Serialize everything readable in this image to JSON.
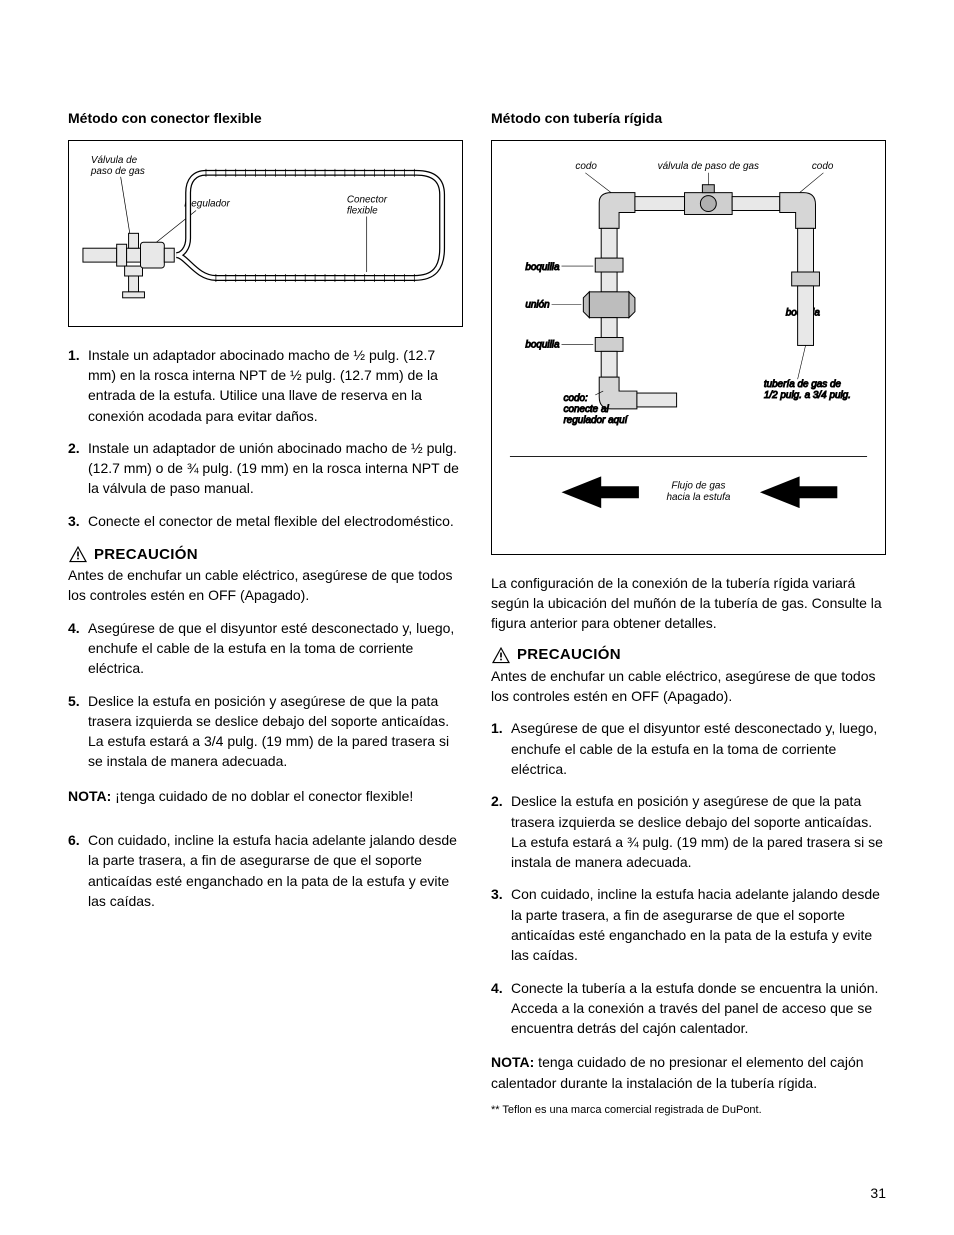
{
  "page_number": "31",
  "left": {
    "title": "Método con conector flexible",
    "diagram": {
      "labels": {
        "valve": "Válvula de\npaso de gas",
        "regulator": "Regulador",
        "connector": "Conector\nflexible"
      },
      "colors": {
        "stroke": "#000000",
        "fill_light": "#f2f2f2",
        "fill_mid": "#cccccc"
      }
    },
    "steps_a": [
      {
        "n": "1.",
        "t": "Instale un adaptador abocinado macho de ½ pulg. (12.7 mm) en la rosca interna NPT de ½ pulg. (12.7 mm) de la entrada de la estufa. Utilice una llave de reserva en la conexión acodada para evitar daños."
      },
      {
        "n": "2.",
        "t": "Instale un adaptador de unión abocinado macho de ½ pulg. (12.7 mm) o de ¾ pulg. (19 mm) en la rosca interna NPT de la válvula de paso manual."
      },
      {
        "n": "3.",
        "t": "Conecte el conector de metal flexible del electrodoméstico."
      }
    ],
    "caution_label": "PRECAUCIÓN",
    "caution_text": "Antes de enchufar un cable eléctrico, asegúrese de que todos los controles estén en OFF (Apagado).",
    "steps_b": [
      {
        "n": "4.",
        "t": "Asegúrese de que el disyuntor esté desconectado y, luego, enchufe el cable de la estufa en la toma de corriente eléctrica."
      },
      {
        "n": "5.",
        "t": "Deslice la estufa en posición y asegúrese de que la pata trasera izquierda se deslice debajo del soporte anticaídas. La estufa estará a 3/4 pulg. (19 mm) de la pared trasera si se instala de manera adecuada."
      }
    ],
    "nota_label": "NOTA:",
    "nota_text": " ¡tenga cuidado de no doblar el conector flexible!",
    "steps_c": [
      {
        "n": "6.",
        "t": "Con cuidado, incline la estufa hacia adelante jalando desde la parte trasera, a fin de asegurarse de que el soporte anticaídas esté enganchado en la pata de la estufa y evite las caídas."
      }
    ]
  },
  "right": {
    "title": "Método con tubería rígida",
    "diagram": {
      "labels": {
        "codo_tl": "codo",
        "codo_tr": "codo",
        "valve": "válvula de paso de gas",
        "boquilla_l1": "boquilla",
        "union": "unión",
        "boquilla_l2": "boquilla",
        "boquilla_r": "boquilla",
        "pipe": "tubería de gas de\n1/2 pulg. a 3/4 pulg.",
        "codo_bl": "codo:\nconecte al\nregulador aquí",
        "flow": "Flujo de gas\nhacia la estufa"
      },
      "colors": {
        "stroke": "#000000",
        "fill_light": "#f0f0f0",
        "fill_mid": "#bdbdbd",
        "fill_dark": "#8c8c8c"
      }
    },
    "intro": "La configuración de la conexión de la tubería rígida variará según la ubicación del muñón de la tubería de gas. Consulte la figura anterior para obtener detalles.",
    "caution_label": "PRECAUCIÓN",
    "caution_text": "Antes de enchufar un cable eléctrico, asegúrese de que todos los controles estén en OFF (Apagado).",
    "steps": [
      {
        "n": "1.",
        "t": "Asegúrese de que el disyuntor esté desconectado y, luego, enchufe el cable de la estufa en la toma de corriente eléctrica."
      },
      {
        "n": "2.",
        "t": "Deslice la estufa en posición y asegúrese de que la pata trasera izquierda se deslice debajo del soporte anticaídas. La estufa estará a ¾ pulg. (19 mm) de la pared trasera si se instala de manera adecuada."
      },
      {
        "n": "3.",
        "t": "Con cuidado, incline la estufa hacia adelante jalando desde la parte trasera, a fin de asegurarse de que el soporte anticaídas esté enganchado en la pata de la estufa y evite las caídas."
      },
      {
        "n": "4.",
        "t": "Conecte la tubería a la estufa donde se encuentra la unión. Acceda a la conexión a través del panel de acceso que se encuentra detrás del cajón calentador."
      }
    ],
    "nota_label": "NOTA:",
    "nota_text": " tenga cuidado de no presionar el elemento del cajón calentador durante la instalación de la tubería rígida.",
    "footnote": "** Teflon es una marca comercial registrada de DuPont."
  }
}
